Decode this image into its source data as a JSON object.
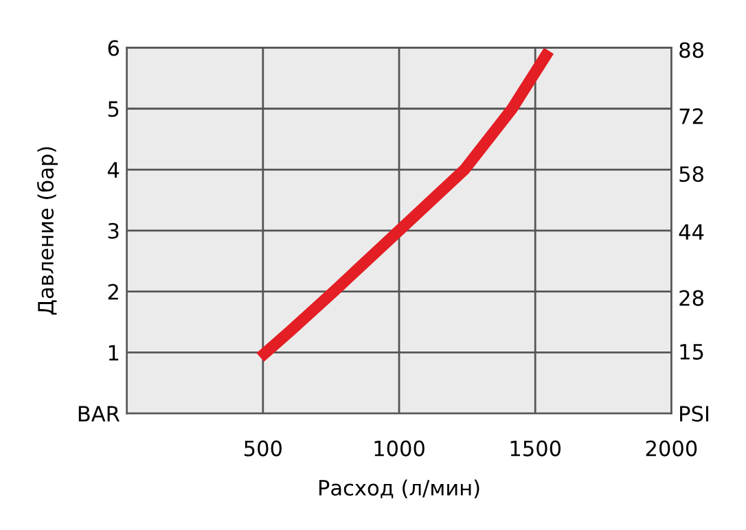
{
  "chart_data": {
    "type": "line",
    "xlabel": "Расход (л/мин)",
    "ylabel": "Давление (бар)",
    "x": [
      490,
      600,
      760,
      1000,
      1240,
      1415,
      1550
    ],
    "series": [
      {
        "color": "#e31e24",
        "values": [
          0.92,
          1.35,
          2.0,
          3.0,
          4.0,
          5.0,
          5.95
        ]
      }
    ],
    "xlim": [
      0,
      2000
    ],
    "xticks": [
      500,
      1000,
      1500,
      2000
    ],
    "ylim": [
      0,
      6
    ],
    "yticks": [
      {
        "value": 0,
        "label": "BAR"
      },
      1,
      2,
      3,
      4,
      5,
      6
    ],
    "y2lim": [
      0,
      88.5
    ],
    "y2ticks": [
      {
        "value": 0,
        "label": "PSI"
      },
      15,
      28,
      44,
      58,
      72,
      88
    ],
    "grid": true,
    "marker": "none",
    "line_style": "solid",
    "legend": false
  }
}
